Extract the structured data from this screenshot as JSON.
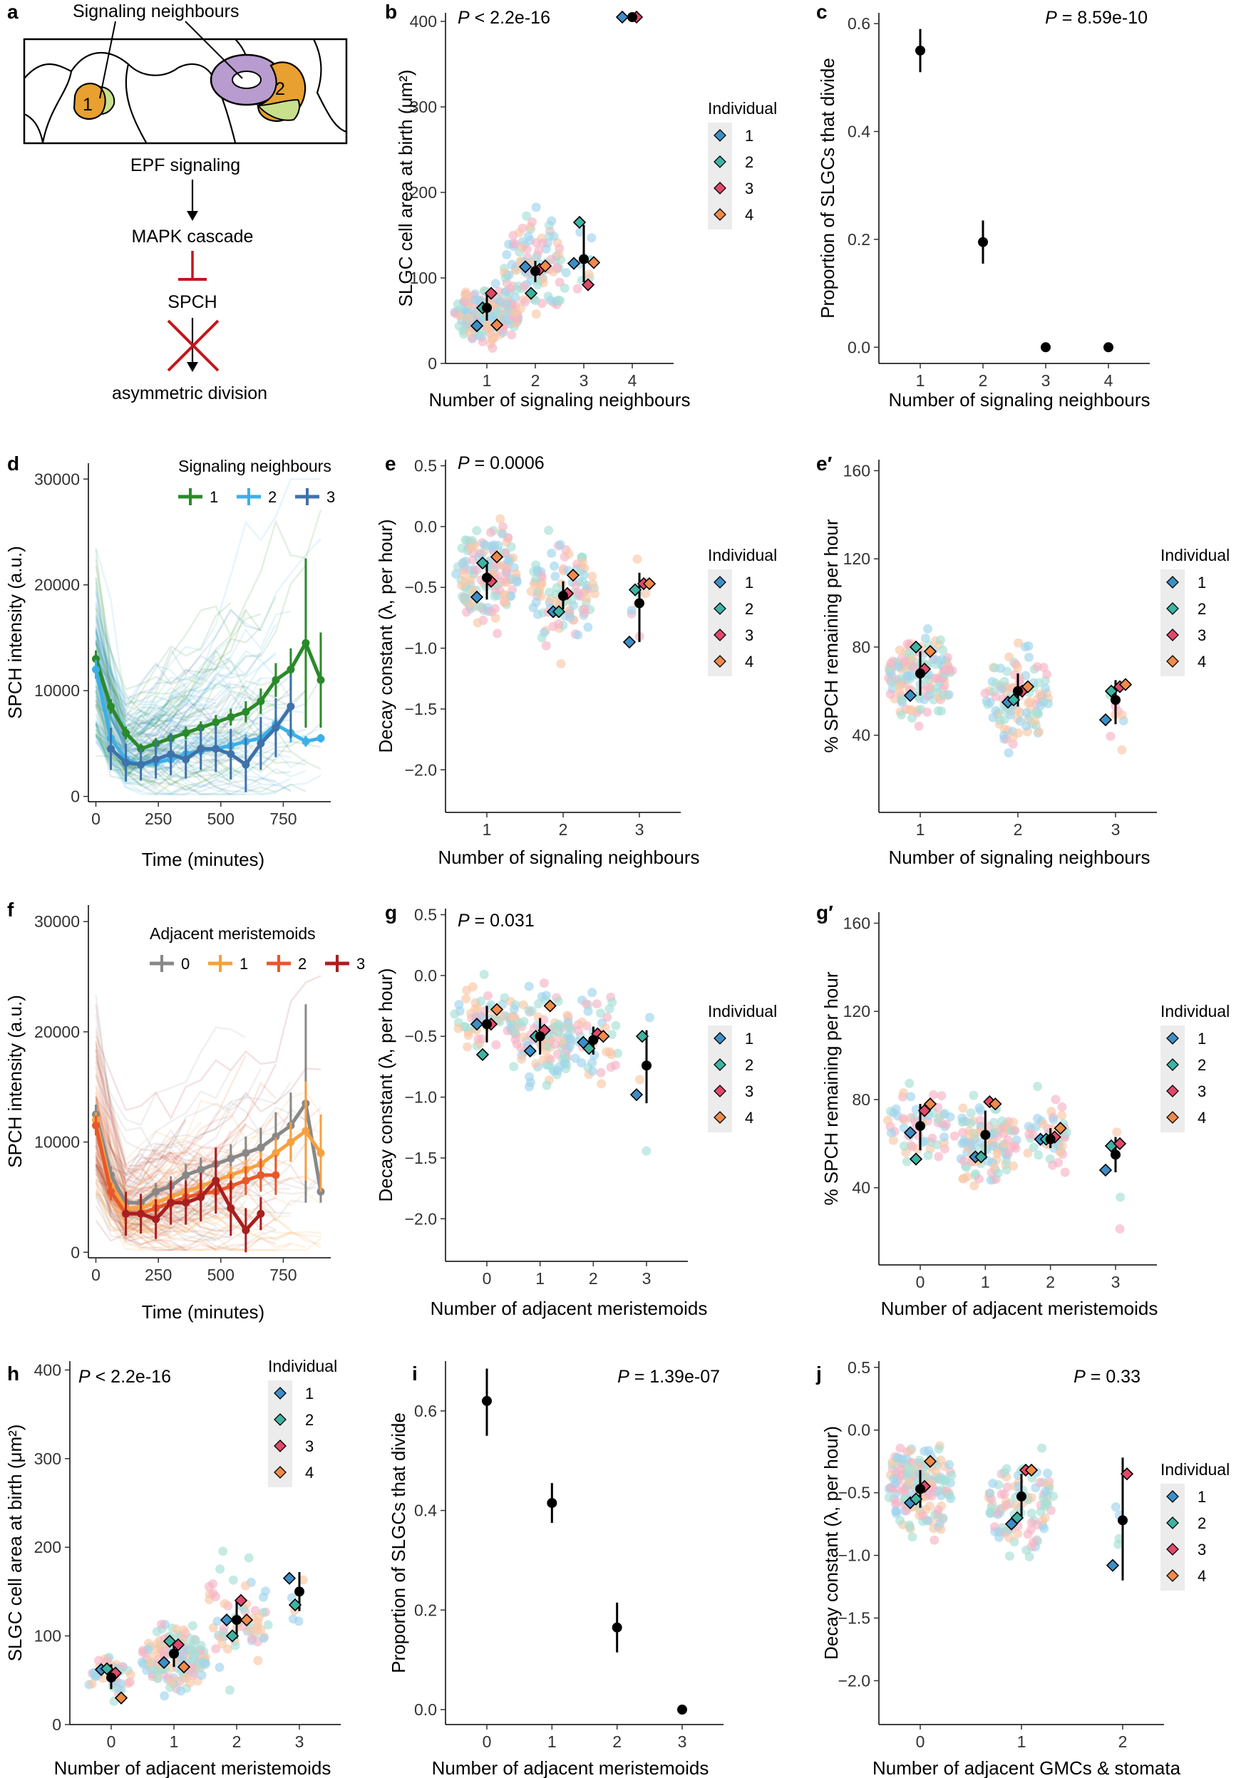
{
  "colors": {
    "individual": [
      "#3d8fc7",
      "#3fb3a3",
      "#e04a6a",
      "#f08a4a"
    ],
    "individual_light": [
      "#9fd4ec",
      "#a6e0d6",
      "#f6b3c6",
      "#f9c7a6"
    ],
    "signal": [
      "#2a8a2a",
      "#3ab0e8",
      "#3f72aa"
    ],
    "meristemoid": [
      "#888888",
      "#f7a040",
      "#e8582a",
      "#a81f1f"
    ],
    "inhibit": "#c4161c",
    "cell1": "#e8a030",
    "cell2": "#c8e08c",
    "signaling": "#b89ccf"
  },
  "schematic": {
    "letter": "a",
    "title": "Signaling neighbours",
    "cell_labels": [
      "1",
      "2"
    ],
    "steps": [
      "EPF signaling",
      "MAPK cascade",
      "SPCH",
      "asymmetric division"
    ]
  },
  "legend_individual": {
    "title": "Individual",
    "items": [
      "1",
      "2",
      "3",
      "4"
    ]
  },
  "chart_data": [
    {
      "letter": "b",
      "type": "scatter",
      "xlabel": "Number of signaling neighbours",
      "ylabel": "SLGC cell area at birth (μm²)",
      "p_prefix": "P",
      "p_rest": " < 2.2e-16",
      "categories": [
        "1",
        "2",
        "3",
        "4"
      ],
      "ylim": [
        0,
        410
      ],
      "yticks": [
        0,
        100,
        200,
        300,
        400
      ],
      "yticklabels": [
        "0",
        "100",
        "200",
        "300",
        "400"
      ],
      "means": [
        65,
        108,
        122,
        405
      ],
      "ci": [
        [
          50,
          82
        ],
        [
          95,
          120
        ],
        [
          95,
          162
        ],
        [
          405,
          405
        ]
      ],
      "individuals": [
        [
          44,
          65,
          82,
          45
        ],
        [
          113,
          82,
          110,
          114
        ],
        [
          117,
          165,
          92,
          118
        ],
        [
          405,
          null,
          405,
          null
        ]
      ],
      "raw_n": [
        170,
        110,
        9,
        0
      ],
      "raw_mean": [
        55,
        110,
        120,
        0
      ],
      "raw_sd": [
        30,
        50,
        40,
        0
      ],
      "legend": true
    },
    {
      "letter": "c",
      "type": "scatter",
      "xlabel": "Number of signaling neighbours",
      "ylabel": "Proportion of SLGCs that divide",
      "p_prefix": "P",
      "p_rest": " = 8.59e-10",
      "categories": [
        "1",
        "2",
        "3",
        "4"
      ],
      "ylim": [
        -0.03,
        0.62
      ],
      "yticks": [
        0.0,
        0.2,
        0.4,
        0.6
      ],
      "yticklabels": [
        "0.0",
        "0.2",
        "0.4",
        "0.6"
      ],
      "means": [
        0.55,
        0.195,
        0.0,
        0.0
      ],
      "ci": [
        [
          0.51,
          0.59
        ],
        [
          0.155,
          0.235
        ],
        [
          0.0,
          0.0
        ],
        [
          0.0,
          0.0
        ]
      ],
      "legend": false
    },
    {
      "letter": "d",
      "type": "line",
      "xlabel": "Time (minutes)",
      "ylabel": "SPCH intensity (a.u.)",
      "xlim": [
        -30,
        940
      ],
      "xticks": [
        0,
        250,
        500,
        750
      ],
      "xticklabels": [
        "0",
        "250",
        "500",
        "750"
      ],
      "ylim": [
        -500,
        31500
      ],
      "yticks": [
        0,
        10000,
        20000,
        30000
      ],
      "yticklabels": [
        "0",
        "10000",
        "20000",
        "30000"
      ],
      "legend_title": "Signaling neighbours",
      "legend_items": [
        "1",
        "2",
        "3"
      ],
      "series": [
        {
          "name": "1",
          "x": [
            0,
            60,
            120,
            180,
            240,
            300,
            360,
            420,
            480,
            540,
            600,
            660,
            720,
            780,
            840,
            900
          ],
          "y": [
            13000,
            8500,
            6000,
            4500,
            5000,
            5500,
            6000,
            6500,
            7000,
            7500,
            8000,
            9000,
            11000,
            12000,
            14500,
            11000
          ],
          "err": [
            800,
            700,
            600,
            500,
            500,
            500,
            600,
            600,
            700,
            800,
            1000,
            1200,
            1600,
            2000,
            8000,
            4500
          ]
        },
        {
          "name": "2",
          "x": [
            0,
            60,
            120,
            180,
            240,
            300,
            360,
            420,
            480,
            540,
            600,
            660,
            720,
            780,
            840,
            900
          ],
          "y": [
            12000,
            5500,
            3500,
            3000,
            3200,
            3500,
            4000,
            4300,
            4500,
            4800,
            5200,
            5500,
            6800,
            6000,
            5200,
            5500
          ],
          "err": [
            900,
            700,
            500,
            400,
            400,
            400,
            500,
            500,
            500,
            600,
            700,
            800,
            1000,
            900,
            500,
            400
          ]
        },
        {
          "name": "3",
          "x": [
            60,
            120,
            180,
            240,
            300,
            360,
            420,
            480,
            540,
            600,
            660,
            720,
            780
          ],
          "y": [
            4500,
            3200,
            3000,
            3500,
            4000,
            3500,
            4500,
            4500,
            4000,
            3000,
            5000,
            6500,
            8500
          ],
          "err": [
            2000,
            1800,
            1500,
            1800,
            2000,
            1800,
            2000,
            2200,
            2400,
            2600,
            2500,
            2800,
            3000
          ]
        }
      ]
    },
    {
      "letter": "e",
      "type": "scatter",
      "xlabel": "Number of signaling neighbours",
      "ylabel": "Decay constant (λ, per hour)",
      "p_prefix": "P",
      "p_rest": " = 0.0006",
      "categories": [
        "1",
        "2",
        "3"
      ],
      "ylim": [
        -2.35,
        0.55
      ],
      "yticks": [
        -2.0,
        -1.5,
        -1.0,
        -0.5,
        0.0,
        0.5
      ],
      "yticklabels": [
        "−2.0",
        "−1.5",
        "−1.0",
        "−0.5",
        "0.0",
        "0.5"
      ],
      "means": [
        -0.42,
        -0.57,
        -0.63
      ],
      "ci": [
        [
          -0.6,
          -0.28
        ],
        [
          -0.68,
          -0.45
        ],
        [
          -0.95,
          -0.38
        ]
      ],
      "individuals": [
        [
          -0.58,
          -0.3,
          -0.45,
          -0.25
        ],
        [
          -0.7,
          -0.7,
          -0.55,
          -0.4
        ],
        [
          -0.95,
          -0.52,
          -0.47,
          -0.47
        ]
      ],
      "raw_n": [
        150,
        110,
        8
      ],
      "raw_mean": [
        -0.4,
        -0.55,
        -0.75
      ],
      "raw_sd": [
        0.32,
        0.4,
        0.6
      ],
      "legend": true
    },
    {
      "letter": "e′",
      "type": "scatter",
      "xlabel": "Number of signaling neighbours",
      "ylabel": "% SPCH remaining per hour",
      "p_prefix": "",
      "p_rest": "",
      "categories": [
        "1",
        "2",
        "3"
      ],
      "ylim": [
        5,
        165
      ],
      "yticks": [
        40,
        80,
        120,
        160
      ],
      "yticklabels": [
        "40",
        "80",
        "120",
        "160"
      ],
      "means": [
        68,
        60,
        56
      ],
      "ci": [
        [
          58,
          78
        ],
        [
          53,
          68
        ],
        [
          45,
          65
        ]
      ],
      "individuals": [
        [
          58,
          80,
          70,
          78
        ],
        [
          55,
          56,
          60,
          62
        ],
        [
          47,
          60,
          62,
          63
        ]
      ],
      "raw_n": [
        150,
        110,
        8
      ],
      "raw_mean": [
        66,
        58,
        52
      ],
      "raw_sd": [
        17,
        20,
        22
      ],
      "legend": true
    },
    {
      "letter": "f",
      "type": "line",
      "xlabel": "Time (minutes)",
      "ylabel": "SPCH intensity (a.u.)",
      "xlim": [
        -30,
        940
      ],
      "xticks": [
        0,
        250,
        500,
        750
      ],
      "xticklabels": [
        "0",
        "250",
        "500",
        "750"
      ],
      "ylim": [
        -500,
        31500
      ],
      "yticks": [
        0,
        10000,
        20000,
        30000
      ],
      "yticklabels": [
        "0",
        "10000",
        "20000",
        "30000"
      ],
      "legend_title": "Adjacent meristemoids",
      "legend_items": [
        "0",
        "1",
        "2",
        "3"
      ],
      "series": [
        {
          "name": "0",
          "x": [
            0,
            60,
            120,
            180,
            240,
            300,
            360,
            420,
            480,
            540,
            600,
            660,
            720,
            780,
            840,
            900
          ],
          "y": [
            12500,
            7000,
            4500,
            4500,
            5500,
            6000,
            7000,
            7500,
            8000,
            8500,
            9000,
            9500,
            10500,
            11500,
            13500,
            5500
          ],
          "err": [
            900,
            800,
            700,
            700,
            800,
            900,
            1000,
            1100,
            1200,
            1300,
            1500,
            1800,
            2200,
            3000,
            9000,
            1000
          ]
        },
        {
          "name": "1",
          "x": [
            0,
            60,
            120,
            180,
            240,
            300,
            360,
            420,
            480,
            540,
            600,
            660,
            720,
            780,
            840,
            900
          ],
          "y": [
            12000,
            6000,
            4000,
            4000,
            4500,
            5000,
            5500,
            6000,
            6500,
            7000,
            7500,
            8000,
            9000,
            10000,
            11000,
            9000
          ],
          "err": [
            700,
            600,
            500,
            500,
            500,
            500,
            600,
            600,
            700,
            800,
            900,
            1100,
            1400,
            1800,
            4500,
            3500
          ]
        },
        {
          "name": "2",
          "x": [
            0,
            60,
            120,
            180,
            240,
            300,
            360,
            420,
            480,
            540,
            600,
            660,
            720
          ],
          "y": [
            11500,
            5500,
            3500,
            3500,
            4000,
            4500,
            5000,
            5300,
            5500,
            6000,
            6500,
            7000,
            7000
          ],
          "err": [
            900,
            800,
            700,
            700,
            700,
            700,
            800,
            900,
            1000,
            1100,
            1300,
            1500,
            1800
          ]
        },
        {
          "name": "3",
          "x": [
            120,
            180,
            240,
            300,
            360,
            420,
            480,
            540,
            600,
            660
          ],
          "y": [
            3500,
            3500,
            3000,
            4500,
            4500,
            5000,
            6500,
            4000,
            2000,
            3500
          ],
          "err": [
            2000,
            1800,
            1800,
            2000,
            2000,
            2200,
            3000,
            2500,
            2000,
            1500
          ]
        }
      ]
    },
    {
      "letter": "g",
      "type": "scatter",
      "xlabel": "Number of adjacent meristemoids",
      "ylabel": "Decay constant (λ, per hour)",
      "p_prefix": "P",
      "p_rest": " = 0.031",
      "categories": [
        "0",
        "1",
        "2",
        "3"
      ],
      "ylim": [
        -2.35,
        0.55
      ],
      "yticks": [
        -2.0,
        -1.5,
        -1.0,
        -0.5,
        0.0,
        0.5
      ],
      "yticklabels": [
        "−2.0",
        "−1.5",
        "−1.0",
        "−0.5",
        "0.0",
        "0.5"
      ],
      "means": [
        -0.4,
        -0.5,
        -0.53,
        -0.74
      ],
      "ci": [
        [
          -0.55,
          -0.25
        ],
        [
          -0.65,
          -0.35
        ],
        [
          -0.65,
          -0.42
        ],
        [
          -1.05,
          -0.45
        ]
      ],
      "individuals": [
        [
          -0.4,
          -0.65,
          -0.4,
          -0.28
        ],
        [
          -0.62,
          -0.5,
          -0.45,
          -0.25
        ],
        [
          -0.55,
          -0.6,
          -0.48,
          -0.5
        ],
        [
          -0.98,
          -0.5,
          null,
          null
        ]
      ],
      "raw_n": [
        60,
        120,
        45,
        4
      ],
      "raw_mean": [
        -0.35,
        -0.5,
        -0.55,
        -0.9
      ],
      "raw_sd": [
        0.25,
        0.38,
        0.45,
        0.8
      ],
      "legend": true
    },
    {
      "letter": "g′",
      "type": "scatter",
      "xlabel": "Number of adjacent meristemoids",
      "ylabel": "% SPCH remaining per hour",
      "p_prefix": "",
      "p_rest": "",
      "categories": [
        "0",
        "1",
        "2",
        "3"
      ],
      "ylim": [
        5,
        165
      ],
      "yticks": [
        40,
        80,
        120,
        160
      ],
      "yticklabels": [
        "40",
        "80",
        "120",
        "160"
      ],
      "means": [
        68,
        64,
        62,
        55
      ],
      "ci": [
        [
          57,
          78
        ],
        [
          53,
          75
        ],
        [
          58,
          67
        ],
        [
          47,
          63
        ]
      ],
      "individuals": [
        [
          65,
          53,
          75,
          78
        ],
        [
          54,
          54,
          79,
          78
        ],
        [
          62,
          62,
          63,
          67
        ],
        [
          48,
          59,
          60,
          null
        ]
      ],
      "raw_n": [
        60,
        120,
        45,
        4
      ],
      "raw_mean": [
        68,
        60,
        60,
        50
      ],
      "raw_sd": [
        15,
        18,
        20,
        25
      ],
      "legend": true
    },
    {
      "letter": "h",
      "type": "scatter",
      "xlabel": "Number of adjacent meristemoids",
      "ylabel": "SLGC cell area at birth (μm²)",
      "p_prefix": "P",
      "p_rest": " < 2.2e-16",
      "categories": [
        "0",
        "1",
        "2",
        "3"
      ],
      "ylim": [
        0,
        410
      ],
      "yticks": [
        0,
        100,
        200,
        300,
        400
      ],
      "yticklabels": [
        "0",
        "100",
        "200",
        "300",
        "400"
      ],
      "means": [
        53,
        80,
        118,
        150
      ],
      "ci": [
        [
          40,
          68
        ],
        [
          65,
          95
        ],
        [
          97,
          140
        ],
        [
          128,
          172
        ]
      ],
      "individuals": [
        [
          62,
          63,
          58,
          30
        ],
        [
          70,
          94,
          90,
          65
        ],
        [
          118,
          100,
          140,
          118
        ],
        [
          165,
          135,
          null,
          null
        ]
      ],
      "raw_n": [
        40,
        150,
        60,
        5
      ],
      "raw_mean": [
        50,
        75,
        120,
        150
      ],
      "raw_sd": [
        25,
        35,
        60,
        35
      ],
      "legend": true
    },
    {
      "letter": "i",
      "type": "scatter",
      "xlabel": "Number of adjacent meristemoids",
      "ylabel": "Proportion of SLGCs that divide",
      "p_prefix": "P",
      "p_rest": " = 1.39e-07",
      "categories": [
        "0",
        "1",
        "2",
        "3"
      ],
      "ylim": [
        -0.03,
        0.7
      ],
      "yticks": [
        0.0,
        0.2,
        0.4,
        0.6
      ],
      "yticklabels": [
        "0.0",
        "0.2",
        "0.4",
        "0.6"
      ],
      "means": [
        0.62,
        0.415,
        0.165,
        0.0
      ],
      "ci": [
        [
          0.55,
          0.685
        ],
        [
          0.375,
          0.455
        ],
        [
          0.115,
          0.215
        ],
        [
          0.0,
          0.0
        ]
      ],
      "legend": false
    },
    {
      "letter": "j",
      "type": "scatter",
      "xlabel": "Number of adjacent GMCs & stomata",
      "ylabel": "Decay constant (λ, per hour)",
      "p_prefix": "P",
      "p_rest": " = 0.33",
      "categories": [
        "0",
        "1",
        "2"
      ],
      "ylim": [
        -2.35,
        0.55
      ],
      "yticks": [
        -2.0,
        -1.5,
        -1.0,
        -0.5,
        0.0,
        0.5
      ],
      "yticklabels": [
        "−2.0",
        "−1.5",
        "−1.0",
        "−0.5",
        "0.0",
        "0.5"
      ],
      "means": [
        -0.47,
        -0.53,
        -0.72
      ],
      "ci": [
        [
          -0.62,
          -0.32
        ],
        [
          -0.7,
          -0.35
        ],
        [
          -1.2,
          -0.22
        ]
      ],
      "individuals": [
        [
          -0.58,
          -0.55,
          -0.45,
          -0.25
        ],
        [
          -0.75,
          -0.7,
          -0.32,
          -0.32
        ],
        [
          -1.08,
          null,
          -0.35,
          null
        ]
      ],
      "raw_n": [
        170,
        100,
        4
      ],
      "raw_mean": [
        -0.45,
        -0.55,
        -0.7
      ],
      "raw_sd": [
        0.35,
        0.4,
        0.5
      ],
      "legend": true
    }
  ]
}
